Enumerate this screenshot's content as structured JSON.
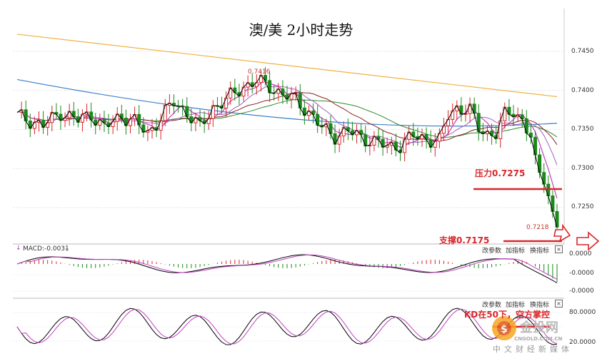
{
  "title": "澳/美 2小时走势",
  "price_panel": {
    "y_ticks": [
      "0.7450",
      "0.7400",
      "0.7350",
      "0.7300",
      "0.7250"
    ],
    "high_label": "0.7416",
    "low_label": "0.7218"
  },
  "annotations": {
    "resistance": "压力0.7275",
    "support": "支撑0.7175",
    "kd_note": "KD在50下，空方掌控"
  },
  "macd_panel": {
    "label": "MACD:-0.0031",
    "buttons": [
      "改参数",
      "加指标",
      "换指标"
    ],
    "close": "×",
    "y_ticks": [
      "0.0000",
      "-0.0000",
      "-0.0000"
    ]
  },
  "kd_panel": {
    "buttons": [
      "改参数",
      "加指标",
      "换指标"
    ],
    "close": "×",
    "y_ticks": [
      "80.0000",
      "20.0000"
    ]
  },
  "watermark": {
    "brand": "金投网",
    "url": "CNGOLD.COM.CN",
    "slogan": "中文财经新媒体"
  },
  "colors": {
    "up": "#d9262b",
    "down": "#1a8a1a",
    "ma_long": "#f0b040",
    "ma_blue": "#3a7fc8",
    "ma_green": "#2a8a2a",
    "ma_dark": "#8b2222",
    "ma_magenta": "#c040c0",
    "ma_violet": "#a060c0",
    "close_line": "#000000",
    "annotation": "#d9262b"
  },
  "chart_data": {
    "type": "candlestick",
    "interval": "2h",
    "y_range": [
      0.72,
      0.748
    ],
    "first_close": 0.7365,
    "last_close": 0.7225,
    "bars": 114,
    "levels": {
      "resistance": 0.7275,
      "support": 0.7175
    },
    "marked": {
      "high": 0.7416,
      "low": 0.7218
    },
    "indicators": [
      "MA",
      "MACD",
      "KD"
    ]
  }
}
